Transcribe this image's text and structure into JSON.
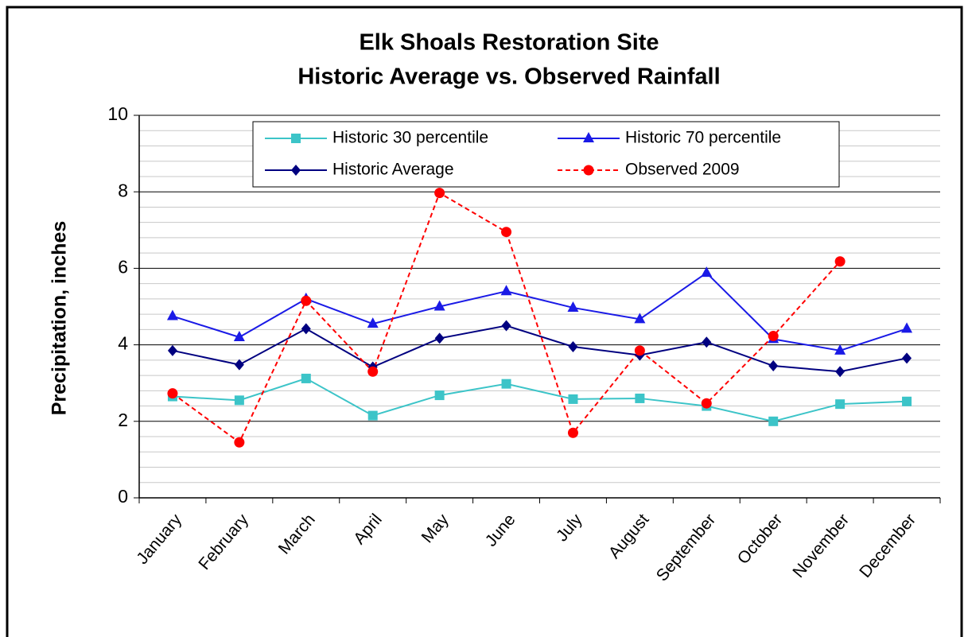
{
  "chart_data": {
    "type": "line",
    "title": [
      "Elk Shoals Restoration Site",
      "Historic Average vs. Observed Rainfall"
    ],
    "y_label": "Precipitation, inches",
    "categories": [
      "January",
      "February",
      "March",
      "April",
      "May",
      "June",
      "July",
      "August",
      "September",
      "October",
      "November",
      "December"
    ],
    "series": [
      {
        "name": "Historic 30 percentile",
        "color": "#3cc4c8",
        "marker": "square",
        "dashed": false,
        "values": [
          2.65,
          2.55,
          3.12,
          2.15,
          2.68,
          2.98,
          2.58,
          2.6,
          2.4,
          2.0,
          2.45,
          2.52
        ]
      },
      {
        "name": "Historic 70 percentile",
        "color": "#1a1ae6",
        "marker": "triangle",
        "dashed": false,
        "values": [
          4.75,
          4.2,
          5.2,
          4.55,
          5.0,
          5.4,
          4.97,
          4.67,
          5.88,
          4.15,
          3.85,
          4.42
        ]
      },
      {
        "name": "Historic Average",
        "color": "#000080",
        "marker": "diamond",
        "dashed": false,
        "values": [
          3.85,
          3.48,
          4.42,
          3.42,
          4.17,
          4.5,
          3.95,
          3.73,
          4.07,
          3.45,
          3.3,
          3.65
        ]
      },
      {
        "name": "Observed 2009",
        "color": "#ff0000",
        "marker": "circle",
        "dashed": true,
        "values": [
          2.73,
          1.45,
          5.15,
          3.3,
          7.97,
          6.95,
          1.7,
          3.85,
          2.47,
          4.23,
          6.18,
          null
        ]
      }
    ],
    "ylim": [
      0,
      10
    ],
    "yticks": [
      0,
      2,
      4,
      6,
      8,
      10
    ],
    "grid": true,
    "minor_grid": true,
    "legend": "top"
  }
}
